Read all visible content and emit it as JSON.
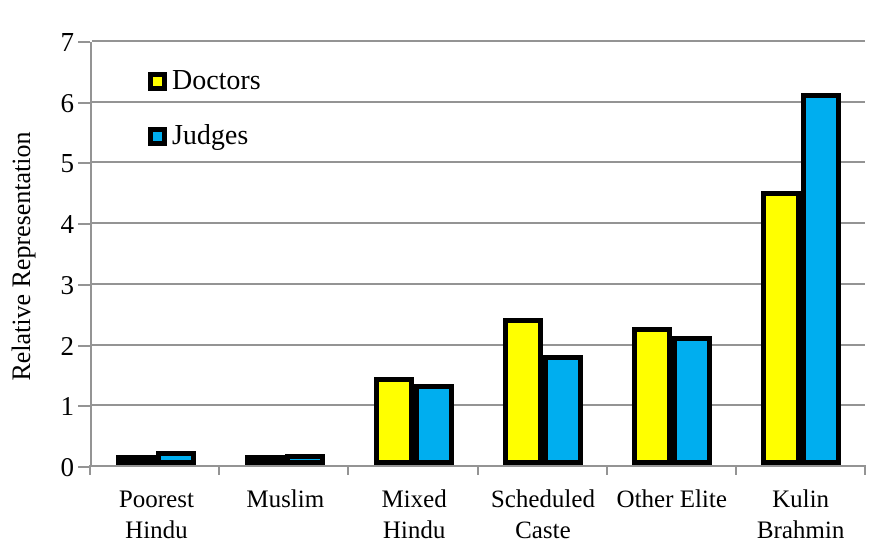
{
  "chart_data": {
    "type": "bar",
    "title": "",
    "xlabel": "",
    "ylabel": "Relative Representation",
    "ylim": [
      0,
      7
    ],
    "yticks": [
      0,
      1,
      2,
      3,
      4,
      5,
      6,
      7
    ],
    "grid": "horizontal",
    "legend_position": "top-left-inside",
    "categories": [
      "Poorest Hindu",
      "Muslim",
      "Mixed Hindu",
      "Scheduled Caste",
      "Other Elite",
      "Kulin Brahmin"
    ],
    "categories_display": [
      "Poorest\nHindu",
      "Muslim",
      "Mixed\nHindu",
      "Scheduled\nCaste",
      "Other Elite",
      "Kulin\nBrahmin"
    ],
    "series": [
      {
        "name": "Doctors",
        "color": "#FFFF00",
        "values": [
          0.07,
          0.11,
          1.4,
          2.38,
          2.22,
          4.47
        ]
      },
      {
        "name": "Judges",
        "color": "#00AEEF",
        "values": [
          0.18,
          0.14,
          1.28,
          1.77,
          2.08,
          6.07
        ]
      }
    ],
    "colors": {
      "bar_border": "#000000",
      "gridline": "#949494",
      "axis": "#949494",
      "text": "#000000",
      "background": "#FFFFFF"
    }
  }
}
